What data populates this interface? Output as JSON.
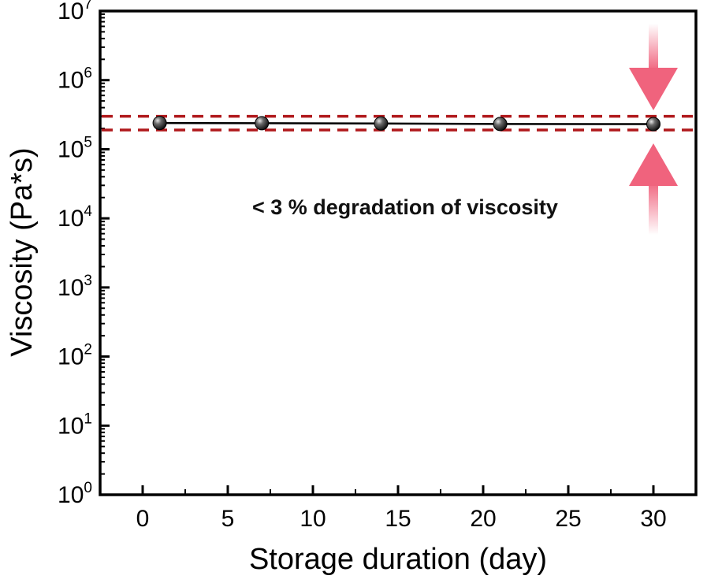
{
  "chart_data": {
    "type": "line",
    "xlabel": "Storage duration (day)",
    "ylabel": "Viscosity (Pa*s)",
    "xlim": [
      -2.5,
      32.5
    ],
    "ylim": [
      1,
      10000000
    ],
    "yscale": "log",
    "x_ticks": [
      0,
      5,
      10,
      15,
      20,
      25,
      30
    ],
    "y_ticks": [
      {
        "base": "10",
        "exp": "0",
        "value": 1
      },
      {
        "base": "10",
        "exp": "1",
        "value": 10
      },
      {
        "base": "10",
        "exp": "2",
        "value": 100
      },
      {
        "base": "10",
        "exp": "3",
        "value": 1000
      },
      {
        "base": "10",
        "exp": "4",
        "value": 10000
      },
      {
        "base": "10",
        "exp": "5",
        "value": 100000
      },
      {
        "base": "10",
        "exp": "6",
        "value": 1000000
      },
      {
        "base": "10",
        "exp": "7",
        "value": 10000000
      }
    ],
    "series": [
      {
        "x": [
          1,
          7,
          14,
          21,
          30
        ],
        "y": [
          240000,
          238000,
          236000,
          232000,
          231000
        ],
        "color": "#000000",
        "marker": "sphere"
      }
    ],
    "reference_lines": [
      {
        "y": 300000,
        "color": "#b0181b",
        "style": "dashed"
      },
      {
        "y": 190000,
        "color": "#b0181b",
        "style": "dashed"
      }
    ],
    "annotation": {
      "text": "< 3 % degradation of viscosity",
      "color": "#111111"
    },
    "arrows_color": "#f0637d",
    "grid": false
  }
}
